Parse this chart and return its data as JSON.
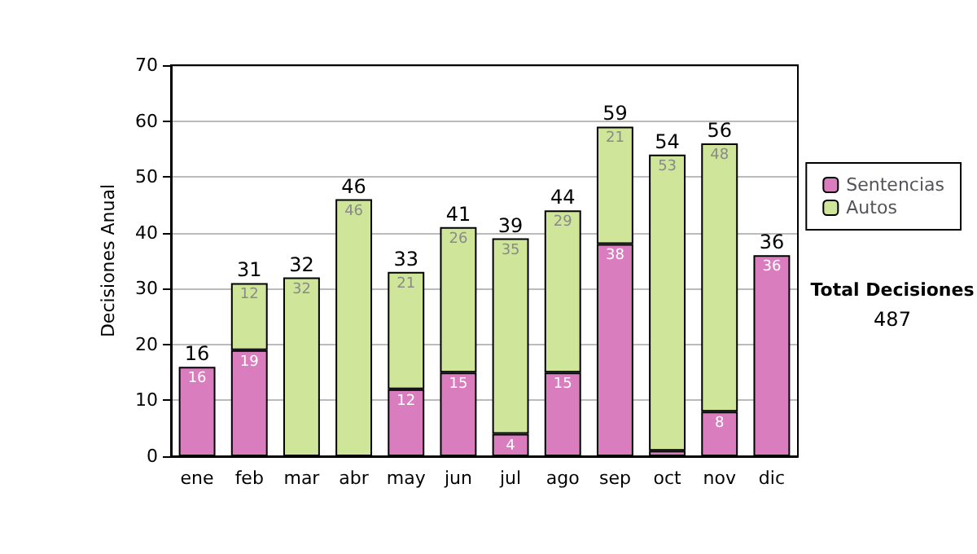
{
  "chart_data": {
    "type": "bar",
    "ylabel": "Decisiones Anual",
    "categories": [
      "ene",
      "feb",
      "mar",
      "abr",
      "may",
      "jun",
      "jul",
      "ago",
      "sep",
      "oct",
      "nov",
      "dic"
    ],
    "stacked": true,
    "series": [
      {
        "name": "Sentencias",
        "color": "#d97dbf",
        "values": [
          16,
          19,
          0,
          0,
          12,
          15,
          4,
          15,
          38,
          1,
          8,
          36
        ],
        "value_labels": [
          "16",
          "19",
          null,
          null,
          "12",
          "15",
          "4",
          "15",
          "38",
          null,
          "8",
          "36"
        ]
      },
      {
        "name": "Autos",
        "color": "#cfe69a",
        "values": [
          0,
          12,
          32,
          46,
          21,
          26,
          35,
          29,
          21,
          53,
          48,
          0
        ],
        "value_labels": [
          null,
          "12",
          "32",
          "46",
          "21",
          "26",
          "35",
          "29",
          "21",
          "53",
          "48",
          null
        ]
      }
    ],
    "totals": [
      "16",
      "31",
      "32",
      "46",
      "33",
      "41",
      "39",
      "44",
      "59",
      "54",
      "56",
      "36"
    ],
    "ylim": [
      0,
      70
    ],
    "yticks": [
      0,
      10,
      20,
      30,
      40,
      50,
      60,
      70
    ],
    "grid": "y",
    "legend": "right",
    "annotations": [
      "Total Decisiones",
      "487"
    ]
  }
}
